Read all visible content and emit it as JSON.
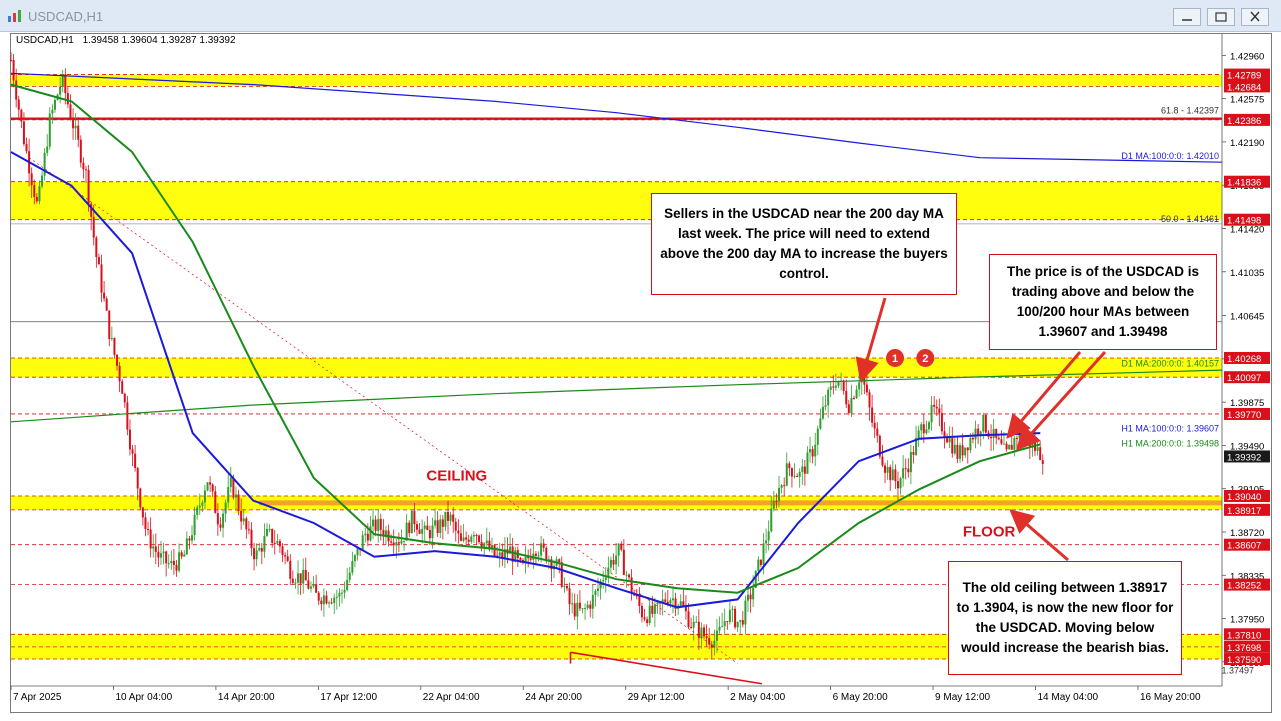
{
  "window": {
    "title": "USDCAD,H1"
  },
  "chart_info": {
    "symbol": "USDCAD,H1",
    "open": "1.39458",
    "high": "1.39604",
    "low": "1.39287",
    "close": "1.39392"
  },
  "price_axis_labels": [
    "1.42960",
    "1.42575",
    "1.42190",
    "1.41805",
    "1.41420",
    "1.41035",
    "1.40645",
    "1.40260",
    "1.39875",
    "1.39490",
    "1.39105",
    "1.38720",
    "1.38335",
    "1.37950",
    "1.37565"
  ],
  "price_tags": [
    {
      "label": "1.42789",
      "color": "#d9101a"
    },
    {
      "label": "1.42684",
      "color": "#d9101a"
    },
    {
      "label": "1.42386",
      "color": "#d9101a"
    },
    {
      "label": "1.41836",
      "color": "#d9101a"
    },
    {
      "label": "1.41498",
      "color": "#d9101a"
    },
    {
      "label": "1.40268",
      "color": "#d9101a"
    },
    {
      "label": "1.40097",
      "color": "#d9101a"
    },
    {
      "label": "1.39770",
      "color": "#d9101a"
    },
    {
      "label": "1.39392",
      "color": "#1a1a1a"
    },
    {
      "label": "1.39040",
      "color": "#d9101a"
    },
    {
      "label": "1.38917",
      "color": "#d9101a"
    },
    {
      "label": "1.38607",
      "color": "#d9101a"
    },
    {
      "label": "1.38252",
      "color": "#d9101a"
    },
    {
      "label": "1.37810",
      "color": "#d9101a"
    },
    {
      "label": "1.37698",
      "color": "#d9101a"
    },
    {
      "label": "1.37590",
      "color": "#d9101a"
    }
  ],
  "line_labels": {
    "fib618": "61.8 - 1.42397",
    "fib50": "50.0 - 1.41461",
    "fib_low": "1.37497",
    "d1_ma100": "D1 MA:100:0:0: 1.42010",
    "d1_ma200": "D1 MA:200:0:0: 1.40157",
    "h1_ma100": "H1 MA:100:0:0: 1.39607",
    "h1_ma200": "H1 MA:200:0:0: 1.39498"
  },
  "time_axis_labels": [
    "7 Apr 2025",
    "10 Apr 04:00",
    "14 Apr 20:00",
    "17 Apr 12:00",
    "22 Apr 04:00",
    "24 Apr 20:00",
    "29 Apr 12:00",
    "2 May 04:00",
    "6 May 20:00",
    "9 May 12:00",
    "14 May 04:00",
    "16 May 20:00"
  ],
  "annotations": {
    "ceiling": "CEILING",
    "floor": "FLOOR",
    "marker1": "1",
    "marker2": "2",
    "callout_top": "Sellers in the USDCAD near the 200 day MA last week.   The price will need to extend above the 200 day MA to increase the buyers control.",
    "callout_right": "The price is of the USDCAD is trading above and below the 100/200 hour MAs between 1.39607 and 1.39498",
    "callout_bottom": "The old ceiling between 1.38917 to 1.3904, is now the new floor for the USDCAD. Moving below would increase the bearish bias."
  },
  "colors": {
    "bull_candle": "#2e9e2e",
    "bear_candle": "#d9101a",
    "zone_yellow": "#ffff00",
    "ma_blue": "#1a1adc",
    "ma_green": "#1a8a1a",
    "resistance_red": "#d9101a"
  },
  "chart_data": {
    "type": "candlestick",
    "symbol": "USDCAD",
    "timeframe": "H1",
    "y_range": [
      1.3735,
      1.4315
    ],
    "x_range": [
      "7 Apr 2025",
      "19 May 2025"
    ],
    "price_path": [
      {
        "t": 0.0,
        "p": 1.4292
      },
      {
        "t": 0.01,
        "p": 1.4225
      },
      {
        "t": 0.022,
        "p": 1.416
      },
      {
        "t": 0.032,
        "p": 1.4238
      },
      {
        "t": 0.042,
        "p": 1.4275
      },
      {
        "t": 0.05,
        "p": 1.424
      },
      {
        "t": 0.062,
        "p": 1.419
      },
      {
        "t": 0.07,
        "p": 1.412
      },
      {
        "t": 0.082,
        "p": 1.4045
      },
      {
        "t": 0.092,
        "p": 1.4
      },
      {
        "t": 0.1,
        "p": 1.394
      },
      {
        "t": 0.112,
        "p": 1.387
      },
      {
        "t": 0.122,
        "p": 1.385
      },
      {
        "t": 0.132,
        "p": 1.3842
      },
      {
        "t": 0.142,
        "p": 1.3848
      },
      {
        "t": 0.152,
        "p": 1.3882
      },
      {
        "t": 0.162,
        "p": 1.392
      },
      {
        "t": 0.172,
        "p": 1.388
      },
      {
        "t": 0.182,
        "p": 1.3915
      },
      {
        "t": 0.192,
        "p": 1.388
      },
      {
        "t": 0.202,
        "p": 1.385
      },
      {
        "t": 0.212,
        "p": 1.387
      },
      {
        "t": 0.222,
        "p": 1.386
      },
      {
        "t": 0.232,
        "p": 1.3835
      },
      {
        "t": 0.242,
        "p": 1.383
      },
      {
        "t": 0.252,
        "p": 1.3815
      },
      {
        "t": 0.262,
        "p": 1.3815
      },
      {
        "t": 0.272,
        "p": 1.3815
      },
      {
        "t": 0.282,
        "p": 1.3842
      },
      {
        "t": 0.292,
        "p": 1.387
      },
      {
        "t": 0.302,
        "p": 1.3878
      },
      {
        "t": 0.312,
        "p": 1.387
      },
      {
        "t": 0.322,
        "p": 1.3865
      },
      {
        "t": 0.332,
        "p": 1.3885
      },
      {
        "t": 0.342,
        "p": 1.387
      },
      {
        "t": 0.352,
        "p": 1.3876
      },
      {
        "t": 0.362,
        "p": 1.3886
      },
      {
        "t": 0.372,
        "p": 1.386
      },
      {
        "t": 0.382,
        "p": 1.3875
      },
      {
        "t": 0.392,
        "p": 1.386
      },
      {
        "t": 0.402,
        "p": 1.3848
      },
      {
        "t": 0.412,
        "p": 1.3856
      },
      {
        "t": 0.422,
        "p": 1.3838
      },
      {
        "t": 0.432,
        "p": 1.386
      },
      {
        "t": 0.442,
        "p": 1.3852
      },
      {
        "t": 0.452,
        "p": 1.384
      },
      {
        "t": 0.462,
        "p": 1.3805
      },
      {
        "t": 0.472,
        "p": 1.38
      },
      {
        "t": 0.482,
        "p": 1.3815
      },
      {
        "t": 0.492,
        "p": 1.384
      },
      {
        "t": 0.502,
        "p": 1.3855
      },
      {
        "t": 0.512,
        "p": 1.3822
      },
      {
        "t": 0.522,
        "p": 1.3798
      },
      {
        "t": 0.532,
        "p": 1.38
      },
      {
        "t": 0.542,
        "p": 1.3815
      },
      {
        "t": 0.552,
        "p": 1.381
      },
      {
        "t": 0.562,
        "p": 1.379
      },
      {
        "t": 0.572,
        "p": 1.378
      },
      {
        "t": 0.582,
        "p": 1.3775
      },
      {
        "t": 0.592,
        "p": 1.38
      },
      {
        "t": 0.602,
        "p": 1.379
      },
      {
        "t": 0.612,
        "p": 1.382
      },
      {
        "t": 0.622,
        "p": 1.386
      },
      {
        "t": 0.632,
        "p": 1.3905
      },
      {
        "t": 0.642,
        "p": 1.393
      },
      {
        "t": 0.652,
        "p": 1.3922
      },
      {
        "t": 0.662,
        "p": 1.3945
      },
      {
        "t": 0.672,
        "p": 1.3985
      },
      {
        "t": 0.682,
        "p": 1.401
      },
      {
        "t": 0.692,
        "p": 1.3985
      },
      {
        "t": 0.702,
        "p": 1.4015
      },
      {
        "t": 0.712,
        "p": 1.3965
      },
      {
        "t": 0.722,
        "p": 1.393
      },
      {
        "t": 0.732,
        "p": 1.3915
      },
      {
        "t": 0.742,
        "p": 1.3935
      },
      {
        "t": 0.752,
        "p": 1.3965
      },
      {
        "t": 0.762,
        "p": 1.398
      },
      {
        "t": 0.772,
        "p": 1.396
      },
      {
        "t": 0.782,
        "p": 1.394
      },
      {
        "t": 0.792,
        "p": 1.3955
      },
      {
        "t": 0.802,
        "p": 1.397
      },
      {
        "t": 0.812,
        "p": 1.3955
      },
      {
        "t": 0.822,
        "p": 1.394
      },
      {
        "t": 0.832,
        "p": 1.3962
      },
      {
        "t": 0.842,
        "p": 1.395
      },
      {
        "t": 0.852,
        "p": 1.394
      }
    ],
    "moving_averages": [
      {
        "name": "D1 MA:100:0:0",
        "color": "#1a1adc",
        "points": [
          [
            0.0,
            1.428
          ],
          [
            0.2,
            1.427
          ],
          [
            0.4,
            1.4255
          ],
          [
            0.5,
            1.4245
          ],
          [
            0.6,
            1.4232
          ],
          [
            0.7,
            1.4218
          ],
          [
            0.8,
            1.4205
          ],
          [
            1.0,
            1.4201
          ]
        ]
      },
      {
        "name": "D1 MA:200:0:0",
        "color": "#1a8a1a",
        "points": [
          [
            0.0,
            1.397
          ],
          [
            0.2,
            1.3985
          ],
          [
            0.4,
            1.3995
          ],
          [
            0.6,
            1.4003
          ],
          [
            0.8,
            1.401
          ],
          [
            1.0,
            1.4016
          ]
        ]
      },
      {
        "name": "H1 MA:100:0:0",
        "color": "#1a1adc",
        "points": [
          [
            0.0,
            1.421
          ],
          [
            0.05,
            1.418
          ],
          [
            0.1,
            1.412
          ],
          [
            0.15,
            1.396
          ],
          [
            0.2,
            1.39
          ],
          [
            0.25,
            1.388
          ],
          [
            0.3,
            1.385
          ],
          [
            0.35,
            1.3855
          ],
          [
            0.4,
            1.385
          ],
          [
            0.45,
            1.384
          ],
          [
            0.5,
            1.3822
          ],
          [
            0.55,
            1.3805
          ],
          [
            0.6,
            1.3812
          ],
          [
            0.65,
            1.388
          ],
          [
            0.7,
            1.3935
          ],
          [
            0.75,
            1.3955
          ],
          [
            0.8,
            1.3958
          ],
          [
            0.85,
            1.396
          ]
        ]
      },
      {
        "name": "H1 MA:200:0:0",
        "color": "#1a8a1a",
        "points": [
          [
            0.0,
            1.427
          ],
          [
            0.05,
            1.4255
          ],
          [
            0.1,
            1.421
          ],
          [
            0.15,
            1.413
          ],
          [
            0.2,
            1.402
          ],
          [
            0.25,
            1.392
          ],
          [
            0.3,
            1.387
          ],
          [
            0.35,
            1.3862
          ],
          [
            0.4,
            1.3857
          ],
          [
            0.45,
            1.3845
          ],
          [
            0.5,
            1.383
          ],
          [
            0.55,
            1.3822
          ],
          [
            0.6,
            1.3818
          ],
          [
            0.65,
            1.384
          ],
          [
            0.7,
            1.388
          ],
          [
            0.75,
            1.391
          ],
          [
            0.8,
            1.3935
          ],
          [
            0.85,
            1.395
          ]
        ]
      }
    ],
    "zones": [
      {
        "low": 1.42684,
        "high": 1.42789
      },
      {
        "low": 1.41498,
        "high": 1.41836
      },
      {
        "low": 1.40097,
        "high": 1.40268
      },
      {
        "low": 1.38917,
        "high": 1.3904
      },
      {
        "low": 1.3759,
        "high": 1.3781
      }
    ],
    "levels": [
      1.42386,
      1.3977,
      1.38607,
      1.38252,
      1.37698
    ],
    "fib_levels": [
      {
        "label": "61.8",
        "price": 1.42397
      },
      {
        "label": "50.0",
        "price": 1.41461
      }
    ]
  }
}
